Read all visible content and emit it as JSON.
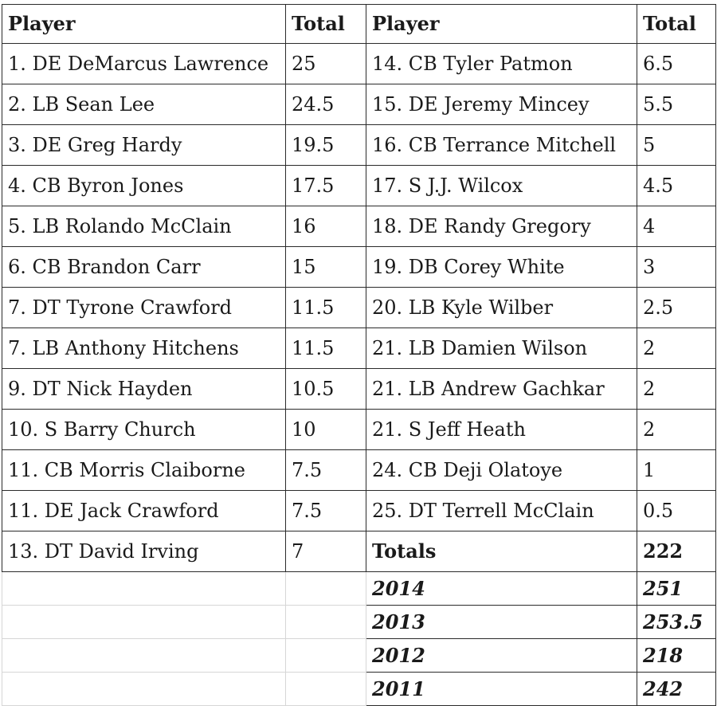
{
  "headers": {
    "player_left": "Player",
    "total_left": "Total",
    "player_right": "Player",
    "total_right": "Total"
  },
  "rows": [
    {
      "lp": "1. DE DeMarcus Lawrence",
      "lt": "25",
      "rp": "14. CB Tyler Patmon",
      "rt": "6.5"
    },
    {
      "lp": "2. LB Sean Lee",
      "lt": "24.5",
      "rp": "15. DE Jeremy Mincey",
      "rt": "5.5"
    },
    {
      "lp": "3. DE Greg Hardy",
      "lt": "19.5",
      "rp": "16. CB Terrance Mitchell",
      "rt": "5"
    },
    {
      "lp": "4. CB Byron Jones",
      "lt": "17.5",
      "rp": "17. S J.J. Wilcox",
      "rt": "4.5"
    },
    {
      "lp": "5. LB Rolando McClain",
      "lt": "16",
      "rp": "18. DE Randy Gregory",
      "rt": "4"
    },
    {
      "lp": "6. CB Brandon Carr",
      "lt": "15",
      "rp": "19. DB Corey White",
      "rt": "3"
    },
    {
      "lp": "7. DT Tyrone Crawford",
      "lt": "11.5",
      "rp": "20. LB Kyle Wilber",
      "rt": "2.5"
    },
    {
      "lp": "7. LB Anthony Hitchens",
      "lt": "11.5",
      "rp": "21. LB Damien Wilson",
      "rt": "2"
    },
    {
      "lp": "9. DT Nick Hayden",
      "lt": "10.5",
      "rp": "21. LB Andrew Gachkar",
      "rt": "2"
    },
    {
      "lp": "10. S Barry Church",
      "lt": "10",
      "rp": "21. S Jeff Heath",
      "rt": "2"
    },
    {
      "lp": "11. CB Morris Claiborne",
      "lt": "7.5",
      "rp": "24. CB Deji Olatoye",
      "rt": "1"
    },
    {
      "lp": "11. DE Jack Crawford",
      "lt": "7.5",
      "rp": "25. DT Terrell McClain",
      "rt": "0.5"
    },
    {
      "lp": "13. DT David Irving",
      "lt": "7",
      "rp": "Totals",
      "rt": "222"
    }
  ],
  "year_totals": [
    {
      "year": "2014",
      "total": "251"
    },
    {
      "year": "2013",
      "total": "253.5"
    },
    {
      "year": "2012",
      "total": "218"
    },
    {
      "year": "2011",
      "total": "242"
    }
  ]
}
